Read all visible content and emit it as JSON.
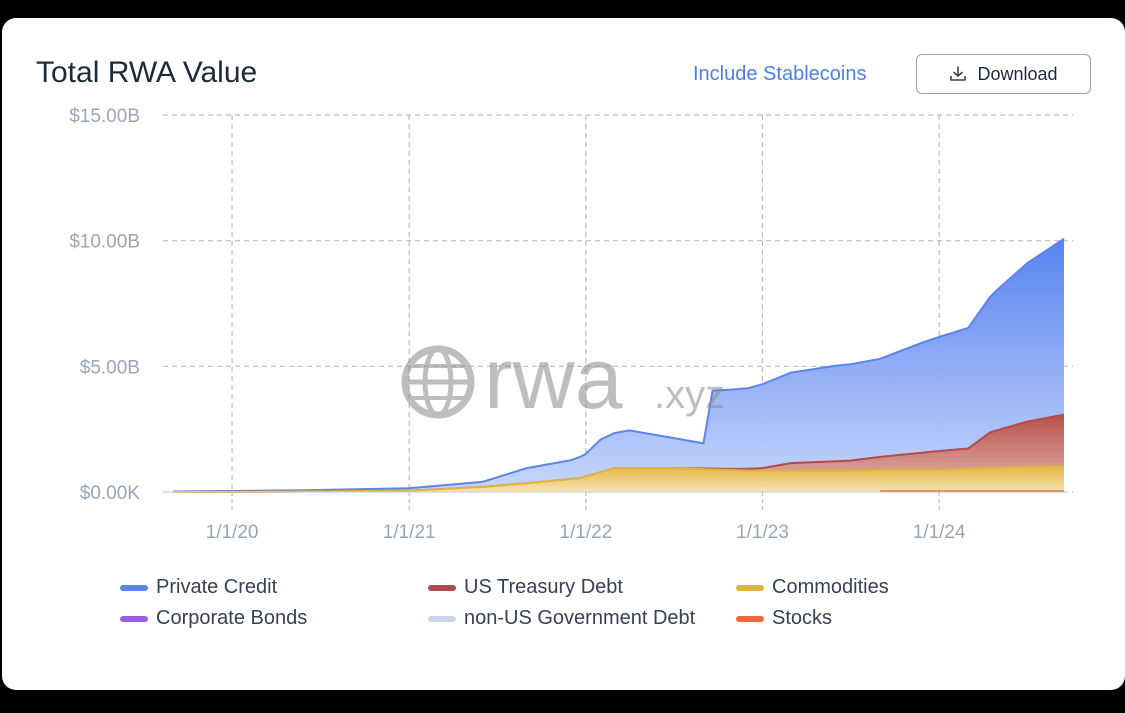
{
  "header": {
    "title": "Total RWA Value",
    "stablecoins_link": "Include Stablecoins",
    "download_label": "Download"
  },
  "watermark": {
    "text": "rwa",
    "suffix": ".xyz"
  },
  "colors": {
    "private_credit": "#5b84ee",
    "us_treasury": "#b54a4a",
    "commodities": "#e0b43c",
    "corporate_bonds": "#9b5de5",
    "non_us_gov": "#c9d6e6",
    "stocks": "#ee6a3c",
    "link": "#4f7ee0"
  },
  "chart_data": {
    "type": "area",
    "stacked": true,
    "title": "Total RWA Value",
    "x_axis": {
      "type": "date",
      "ticks": [
        "1/1/20",
        "1/1/21",
        "1/1/22",
        "1/1/23",
        "1/1/24"
      ],
      "range": [
        "2019-09-01",
        "2024-09-15"
      ]
    },
    "y_axis": {
      "ticks": [
        "$0.00K",
        "$5.00B",
        "$10.00B",
        "$15.00B"
      ],
      "range": [
        0,
        15
      ],
      "unit": "billions USD"
    },
    "grid": true,
    "legend_position": "bottom",
    "series": [
      {
        "name": "Stocks",
        "key": "stocks",
        "points": [
          [
            "2023-09-01",
            0.03
          ],
          [
            "2024-06-01",
            0.03
          ],
          [
            "2024-09-15",
            0.03
          ]
        ]
      },
      {
        "name": "Commodities",
        "key": "commodities",
        "points": [
          [
            "2019-09-01",
            0.0
          ],
          [
            "2020-06-01",
            0.02
          ],
          [
            "2021-01-01",
            0.05
          ],
          [
            "2021-06-01",
            0.2
          ],
          [
            "2021-09-01",
            0.35
          ],
          [
            "2021-12-20",
            0.55
          ],
          [
            "2022-03-01",
            0.95
          ],
          [
            "2022-07-01",
            0.95
          ],
          [
            "2022-12-01",
            0.85
          ],
          [
            "2023-06-01",
            0.85
          ],
          [
            "2024-01-01",
            0.85
          ],
          [
            "2024-05-01",
            0.95
          ],
          [
            "2024-09-15",
            1.0
          ]
        ]
      },
      {
        "name": "US Treasury Debt",
        "key": "us_treasury",
        "points": [
          [
            "2019-09-01",
            0.0
          ],
          [
            "2022-07-01",
            0.0
          ],
          [
            "2022-11-01",
            0.05
          ],
          [
            "2023-01-01",
            0.1
          ],
          [
            "2023-03-01",
            0.3
          ],
          [
            "2023-07-01",
            0.4
          ],
          [
            "2024-01-01",
            0.75
          ],
          [
            "2024-03-01",
            0.8
          ],
          [
            "2024-04-15",
            1.4
          ],
          [
            "2024-07-01",
            1.8
          ],
          [
            "2024-09-15",
            2.05
          ]
        ]
      },
      {
        "name": "Private Credit",
        "key": "private_credit",
        "points": [
          [
            "2019-09-01",
            0.02
          ],
          [
            "2020-06-01",
            0.05
          ],
          [
            "2021-01-01",
            0.1
          ],
          [
            "2021-06-01",
            0.2
          ],
          [
            "2021-09-01",
            0.6
          ],
          [
            "2021-12-01",
            0.75
          ],
          [
            "2022-01-01",
            0.9
          ],
          [
            "2022-02-01",
            1.3
          ],
          [
            "2022-04-01",
            1.5
          ],
          [
            "2022-07-01",
            1.2
          ],
          [
            "2022-09-01",
            1.0
          ],
          [
            "2022-09-20",
            3.1
          ],
          [
            "2022-12-01",
            3.2
          ],
          [
            "2023-03-01",
            3.6
          ],
          [
            "2023-06-01",
            3.8
          ],
          [
            "2023-09-01",
            3.9
          ],
          [
            "2023-12-01",
            4.4
          ],
          [
            "2024-03-01",
            4.8
          ],
          [
            "2024-05-01",
            5.6
          ],
          [
            "2024-07-01",
            6.3
          ],
          [
            "2024-09-15",
            7.0
          ]
        ]
      }
    ],
    "legend": [
      {
        "name": "Private Credit",
        "key": "private_credit"
      },
      {
        "name": "US Treasury Debt",
        "key": "us_treasury"
      },
      {
        "name": "Commodities",
        "key": "commodities"
      },
      {
        "name": "Corporate Bonds",
        "key": "corporate_bonds"
      },
      {
        "name": "non-US Government Debt",
        "key": "non_us_gov"
      },
      {
        "name": "Stocks",
        "key": "stocks"
      }
    ]
  }
}
